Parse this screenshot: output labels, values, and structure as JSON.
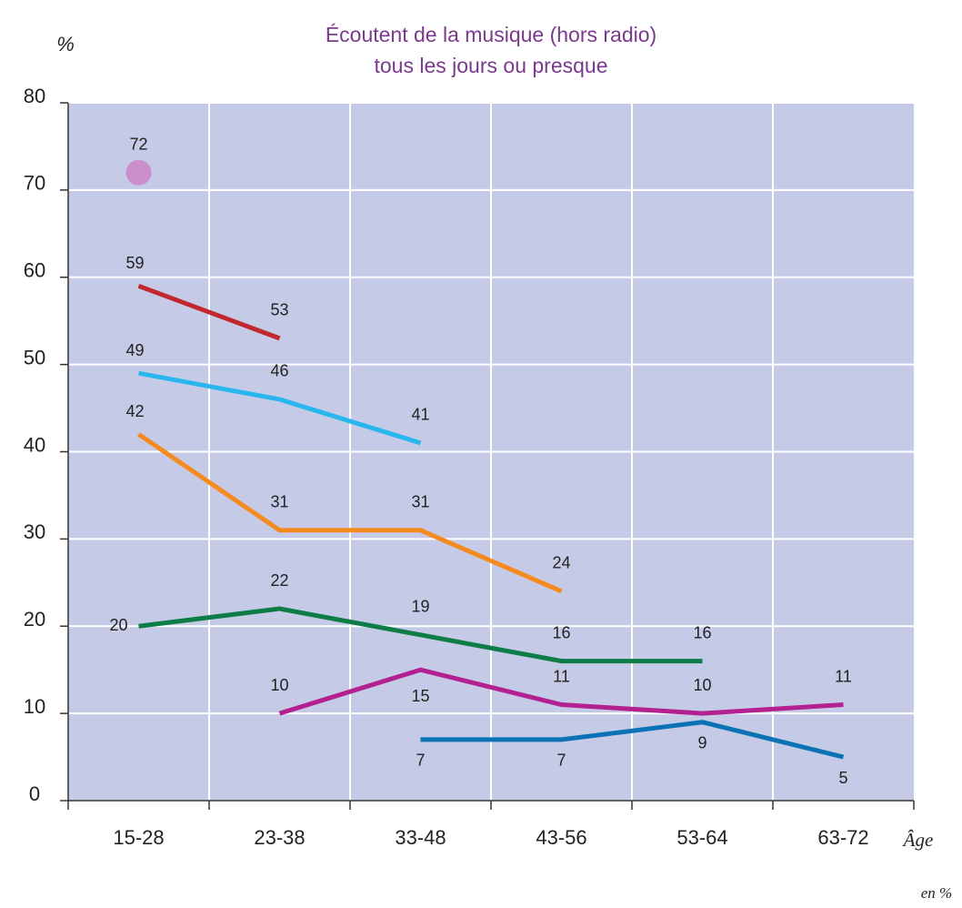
{
  "chart_data": {
    "type": "line",
    "title": "Écoutent de la musique (hors radio)",
    "subtitle": "tous les jours ou presque",
    "y_label": "%",
    "x_label": "Âge",
    "note": "en %",
    "categories": [
      "15-28",
      "23-38",
      "33-48",
      "43-56",
      "53-64",
      "63-72"
    ],
    "series": [
      {
        "color": "#cc8fcc",
        "values": [
          72,
          null,
          null,
          null,
          null,
          null
        ]
      },
      {
        "color": "#c1272d",
        "values": [
          59,
          53,
          null,
          null,
          null,
          null
        ]
      },
      {
        "color": "#29b6ef",
        "values": [
          49,
          46,
          41,
          null,
          null,
          null
        ]
      },
      {
        "color": "#f58a1f",
        "values": [
          42,
          31,
          31,
          24,
          null,
          null
        ]
      },
      {
        "color": "#0e7c46",
        "values": [
          20,
          22,
          19,
          16,
          16,
          null
        ]
      },
      {
        "color": "#b3208f",
        "values": [
          null,
          10,
          15,
          11,
          10,
          11
        ]
      },
      {
        "color": "#0b72b5",
        "values": [
          null,
          null,
          7,
          7,
          9,
          5
        ]
      }
    ],
    "ylim": [
      0,
      80
    ],
    "yticks": [
      0,
      10,
      20,
      30,
      40,
      50,
      60,
      70,
      80
    ],
    "grid": true,
    "background": "#c5cbe6"
  }
}
